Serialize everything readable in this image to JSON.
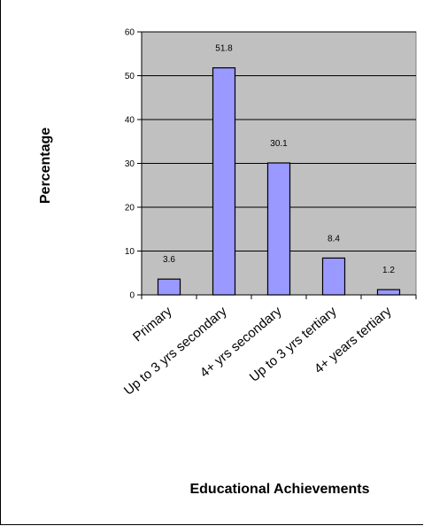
{
  "chart_data": {
    "type": "bar",
    "categories": [
      "Primary",
      "Up to 3 yrs secondary",
      "4+ yrs secondary",
      "Up to 3 yrs tertiary",
      "4+ years tertiary"
    ],
    "values": [
      3.6,
      51.8,
      30.1,
      8.4,
      1.2
    ],
    "data_labels": [
      "3.6",
      "51.8",
      "30.1",
      "8.4",
      "1.2"
    ],
    "title": "",
    "xlabel": "Educational Achievements",
    "ylabel": "Percentage",
    "ylim": [
      0,
      60
    ],
    "yticks": [
      "0",
      "10",
      "20",
      "30",
      "40",
      "50",
      "60"
    ],
    "grid": true,
    "legend": "none",
    "colors": {
      "bar_fill": "#9999ff",
      "bar_stroke": "#000000",
      "plot_bg": "#c0c0c0",
      "grid": "#000000"
    }
  }
}
